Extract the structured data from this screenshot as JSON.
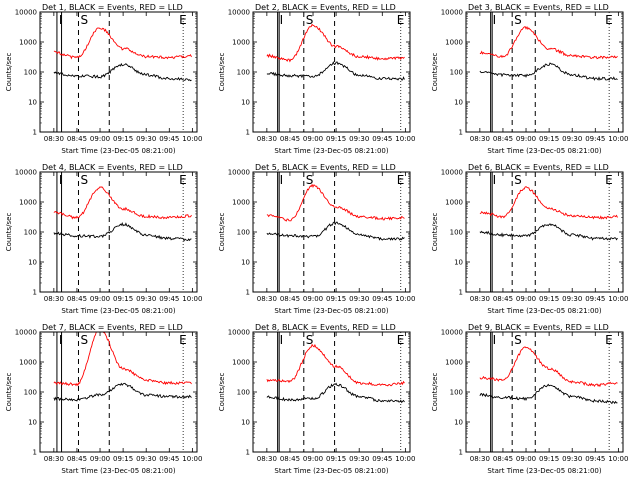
{
  "figure": {
    "xlabel": "Start Time (23-Dec-05 08:21:00)",
    "ylabel": "Counts/sec",
    "xtick_labels": [
      "08:30",
      "08:45",
      "09:00",
      "09:15",
      "09:30",
      "09:45",
      "10:00"
    ],
    "ytick_labels": [
      "1",
      "10",
      "100",
      "1000",
      "10000"
    ]
  },
  "colors": {
    "events": "#000000",
    "lld": "#ff0000",
    "axes": "#000000",
    "background": "#ffffff"
  },
  "chart_data": [
    {
      "type": "line",
      "title": "Det 1, BLACK = Events, RED = LLD",
      "xlabel": "Start Time (23-Dec-05 08:21:00)",
      "ylabel": "Counts/sec",
      "yscale": "log",
      "ylim": [
        1,
        10000
      ],
      "x": [
        "08:30",
        "08:45",
        "09:00",
        "09:15",
        "09:30",
        "09:45",
        "10:00"
      ],
      "series": [
        {
          "name": "Events",
          "values": [
            90,
            75,
            70,
            180,
            80,
            60,
            55
          ]
        },
        {
          "name": "LLD",
          "values": [
            450,
            300,
            3000,
            600,
            330,
            300,
            350
          ]
        }
      ],
      "markers": {
        "labels": [
          "I",
          "S",
          "E"
        ],
        "time_positions": [
          "08:32",
          "08:35",
          "08:46",
          "09:06",
          "09:54"
        ]
      }
    },
    {
      "type": "line",
      "title": "Det 2, BLACK = Events, RED = LLD",
      "xlabel": "Start Time (23-Dec-05 08:21:00)",
      "ylabel": "Counts/sec",
      "yscale": "log",
      "ylim": [
        1,
        10000
      ],
      "x": [
        "08:30",
        "08:45",
        "09:00",
        "09:15",
        "09:30",
        "09:45",
        "10:00"
      ],
      "series": [
        {
          "name": "Events",
          "values": [
            90,
            75,
            70,
            200,
            80,
            60,
            60
          ]
        },
        {
          "name": "LLD",
          "values": [
            350,
            250,
            3500,
            700,
            330,
            280,
            300
          ]
        }
      ],
      "markers": {
        "labels": [
          "I",
          "S",
          "E"
        ],
        "time_positions": [
          "08:37",
          "08:38",
          "08:54",
          "09:14",
          "09:57"
        ]
      }
    },
    {
      "type": "line",
      "title": "Det 3, BLACK = Events, RED = LLD",
      "xlabel": "Start Time (23-Dec-05 08:21:00)",
      "ylabel": "Counts/sec",
      "yscale": "log",
      "ylim": [
        1,
        10000
      ],
      "x": [
        "08:30",
        "08:45",
        "09:00",
        "09:15",
        "09:30",
        "09:45",
        "10:00"
      ],
      "series": [
        {
          "name": "Events",
          "values": [
            100,
            80,
            75,
            180,
            80,
            60,
            60
          ]
        },
        {
          "name": "LLD",
          "values": [
            450,
            330,
            3000,
            600,
            350,
            300,
            320
          ]
        }
      ],
      "markers": {
        "labels": [
          "I",
          "S",
          "E"
        ],
        "time_positions": [
          "08:37",
          "08:38",
          "08:51",
          "09:06",
          "09:54"
        ]
      }
    },
    {
      "type": "line",
      "title": "Det 4, BLACK = Events, RED = LLD",
      "xlabel": "Start Time (23-Dec-05 08:21:00)",
      "ylabel": "Counts/sec",
      "yscale": "log",
      "ylim": [
        1,
        10000
      ],
      "x": [
        "08:30",
        "08:45",
        "09:00",
        "09:15",
        "09:30",
        "09:45",
        "10:00"
      ],
      "series": [
        {
          "name": "Events",
          "values": [
            90,
            75,
            70,
            180,
            80,
            60,
            55
          ]
        },
        {
          "name": "LLD",
          "values": [
            450,
            300,
            3000,
            600,
            330,
            300,
            350
          ]
        }
      ],
      "markers": {
        "labels": [
          "I",
          "S",
          "E"
        ],
        "time_positions": [
          "08:32",
          "08:35",
          "08:46",
          "09:06",
          "09:54"
        ]
      }
    },
    {
      "type": "line",
      "title": "Det 5, BLACK = Events, RED = LLD",
      "xlabel": "Start Time (23-Dec-05 08:21:00)",
      "ylabel": "Counts/sec",
      "yscale": "log",
      "ylim": [
        1,
        10000
      ],
      "x": [
        "08:30",
        "08:45",
        "09:00",
        "09:15",
        "09:30",
        "09:45",
        "10:00"
      ],
      "series": [
        {
          "name": "Events",
          "values": [
            90,
            75,
            70,
            200,
            80,
            60,
            60
          ]
        },
        {
          "name": "LLD",
          "values": [
            350,
            250,
            3500,
            700,
            330,
            280,
            300
          ]
        }
      ],
      "markers": {
        "labels": [
          "I",
          "S",
          "E"
        ],
        "time_positions": [
          "08:37",
          "08:38",
          "08:54",
          "09:14",
          "09:57"
        ]
      }
    },
    {
      "type": "line",
      "title": "Det 6, BLACK = Events, RED = LLD",
      "xlabel": "Start Time (23-Dec-05 08:21:00)",
      "ylabel": "Counts/sec",
      "yscale": "log",
      "ylim": [
        1,
        10000
      ],
      "x": [
        "08:30",
        "08:45",
        "09:00",
        "09:15",
        "09:30",
        "09:45",
        "10:00"
      ],
      "series": [
        {
          "name": "Events",
          "values": [
            100,
            80,
            75,
            180,
            80,
            60,
            60
          ]
        },
        {
          "name": "LLD",
          "values": [
            450,
            330,
            3000,
            600,
            350,
            300,
            320
          ]
        }
      ],
      "markers": {
        "labels": [
          "I",
          "S",
          "E"
        ],
        "time_positions": [
          "08:37",
          "08:38",
          "08:51",
          "09:06",
          "09:54"
        ]
      }
    },
    {
      "type": "line",
      "title": "Det 7, BLACK = Events, RED = LLD",
      "xlabel": "Start Time (23-Dec-05 08:21:00)",
      "ylabel": "Counts/sec",
      "yscale": "log",
      "ylim": [
        1,
        10000
      ],
      "x": [
        "08:30",
        "08:45",
        "09:00",
        "09:15",
        "09:30",
        "09:45",
        "10:00"
      ],
      "series": [
        {
          "name": "Events",
          "values": [
            60,
            55,
            80,
            180,
            80,
            70,
            70
          ]
        },
        {
          "name": "LLD",
          "values": [
            200,
            180,
            12000,
            600,
            250,
            200,
            200
          ]
        }
      ],
      "markers": {
        "labels": [
          "I",
          "S",
          "E"
        ],
        "time_positions": [
          "08:32",
          "08:35",
          "08:46",
          "09:06",
          "09:54"
        ]
      }
    },
    {
      "type": "line",
      "title": "Det 8, BLACK = Events, RED = LLD",
      "xlabel": "Start Time (23-Dec-05 08:21:00)",
      "ylabel": "Counts/sec",
      "yscale": "log",
      "ylim": [
        1,
        10000
      ],
      "x": [
        "08:30",
        "08:45",
        "09:00",
        "09:15",
        "09:30",
        "09:45",
        "10:00"
      ],
      "series": [
        {
          "name": "Events",
          "values": [
            70,
            55,
            60,
            180,
            70,
            50,
            50
          ]
        },
        {
          "name": "LLD",
          "values": [
            250,
            230,
            3500,
            700,
            200,
            170,
            200
          ]
        }
      ],
      "markers": {
        "labels": [
          "I",
          "S",
          "E"
        ],
        "time_positions": [
          "08:37",
          "08:38",
          "08:54",
          "09:14",
          "09:57"
        ]
      }
    },
    {
      "type": "line",
      "title": "Det 9, BLACK = Events, RED = LLD",
      "xlabel": "Start Time (23-Dec-05 08:21:00)",
      "ylabel": "Counts/sec",
      "yscale": "log",
      "ylim": [
        1,
        10000
      ],
      "x": [
        "08:30",
        "08:45",
        "09:00",
        "09:15",
        "09:30",
        "09:45",
        "10:00"
      ],
      "series": [
        {
          "name": "Events",
          "values": [
            80,
            65,
            60,
            170,
            70,
            50,
            45
          ]
        },
        {
          "name": "LLD",
          "values": [
            300,
            250,
            3000,
            600,
            220,
            170,
            200
          ]
        }
      ],
      "markers": {
        "labels": [
          "I",
          "S",
          "E"
        ],
        "time_positions": [
          "08:37",
          "08:38",
          "08:51",
          "09:06",
          "09:54"
        ]
      }
    }
  ]
}
